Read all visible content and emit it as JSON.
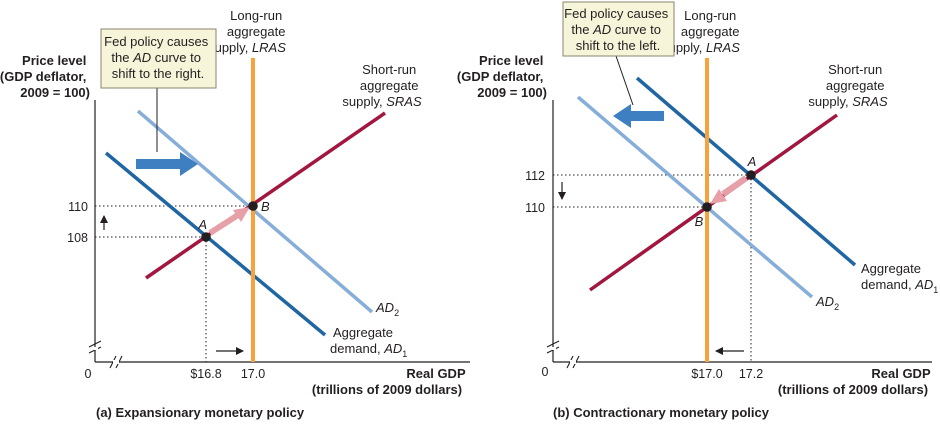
{
  "colors": {
    "lras": "#f7a23b",
    "sras": "#a2173f",
    "ad1": "#1f66a3",
    "ad2": "#86aed9",
    "note_fill": "#f6f4d9",
    "arrow": "#3d7fc0",
    "shift_arrow": "#e8a0a8"
  },
  "left": {
    "yaxis_title": [
      "Price level",
      "(GDP deflator,",
      "2009 = 100)"
    ],
    "xaxis_title": [
      "Real GDP",
      "(trillions of 2009 dollars)"
    ],
    "origin": "0",
    "lras_label": [
      "Long-run",
      "aggregate",
      "supply, "
    ],
    "lras_abbr": "LRAS",
    "sras_label": [
      "Short-run",
      "aggregate",
      "supply, "
    ],
    "sras_abbr": "SRAS",
    "ad1_label": [
      "Aggregate",
      "demand, "
    ],
    "ad1_abbr": "AD",
    "ad1_sub": "1",
    "ad2_abbr": "AD",
    "ad2_sub": "2",
    "note": [
      "Fed policy causes",
      "the ",
      "AD",
      " curve to",
      "shift to the right."
    ],
    "point_a": "A",
    "point_b": "B",
    "price_a": "108",
    "price_b": "110",
    "gdp_a": "$16.8",
    "gdp_b": "17.0",
    "caption": "(a) Expansionary monetary policy"
  },
  "right": {
    "yaxis_title": [
      "Price level",
      "(GDP deflator,",
      "2009 = 100)"
    ],
    "xaxis_title": [
      "Real GDP",
      "(trillions of 2009 dollars)"
    ],
    "origin": "0",
    "lras_label": [
      "Long-run",
      "aggregate",
      "supply, "
    ],
    "lras_abbr": "LRAS",
    "sras_label": [
      "Short-run",
      "aggregate",
      "supply, "
    ],
    "sras_abbr": "SRAS",
    "ad1_label": [
      "Aggregate",
      "demand, "
    ],
    "ad1_abbr": "AD",
    "ad1_sub": "1",
    "ad2_abbr": "AD",
    "ad2_sub": "2",
    "note": [
      "Fed policy causes",
      "the ",
      "AD",
      " curve to",
      "shift to the left."
    ],
    "point_a": "A",
    "point_b": "B",
    "price_a": "112",
    "price_b": "110",
    "gdp_a": "17.2",
    "gdp_b": "$17.0",
    "caption": "(b) Contractionary monetary policy"
  }
}
